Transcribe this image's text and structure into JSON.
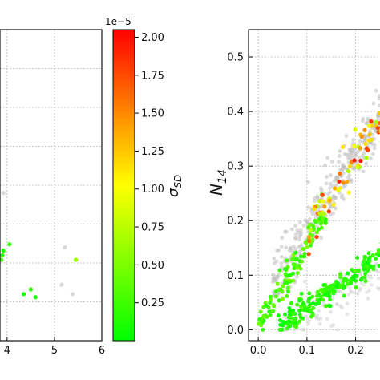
{
  "chart_data": [
    {
      "type": "scatter",
      "panel": "left",
      "xlim": [
        3.85,
        6.0
      ],
      "ylim": [
        0,
        2.0
      ],
      "x_ticks": [
        "4",
        "5",
        "6"
      ],
      "grid": true,
      "series": [
        {
          "color_scale": "sigma_SD",
          "points": [
            {
              "x": 3.9,
              "y": 0.55,
              "c": 2e-06
            },
            {
              "x": 3.92,
              "y": 0.58,
              "c": 1e-06
            },
            {
              "x": 3.88,
              "y": 0.52,
              "c": 3e-06
            },
            {
              "x": 4.05,
              "y": 0.62,
              "c": 2e-06
            },
            {
              "x": 4.35,
              "y": 0.3,
              "c": 1e-06
            },
            {
              "x": 4.5,
              "y": 0.33,
              "c": 2e-06
            },
            {
              "x": 4.6,
              "y": 0.28,
              "c": 1e-06
            },
            {
              "x": 5.45,
              "y": 0.52,
              "c": 6e-06
            }
          ]
        },
        {
          "color": "#d9d9d9",
          "points": [
            {
              "x": 3.92,
              "y": 0.95
            },
            {
              "x": 5.22,
              "y": 0.6
            },
            {
              "x": 5.15,
              "y": 0.36
            },
            {
              "x": 5.38,
              "y": 0.3
            }
          ]
        }
      ]
    },
    {
      "type": "colorbar",
      "label": "σ_SD",
      "label_main": "σ",
      "label_sub": "SD",
      "multiplier": "1e−5",
      "range": [
        0,
        2.05e-05
      ],
      "ticks": [
        "0.25",
        "0.50",
        "0.75",
        "1.00",
        "1.25",
        "1.50",
        "1.75",
        "2.00"
      ],
      "colors": [
        "#00ff00",
        "#ffff00",
        "#ff0000"
      ]
    },
    {
      "type": "scatter",
      "panel": "right",
      "ylabel": "N",
      "ylabel_sub": "14",
      "xlim": [
        -0.02,
        0.26
      ],
      "ylim": [
        -0.02,
        0.55
      ],
      "x_ticks": [
        "0.0",
        "0.1",
        "0.2"
      ],
      "y_ticks": [
        "0.0",
        "0.1",
        "0.2",
        "0.3",
        "0.4",
        "0.5"
      ],
      "grid": true,
      "series": [
        {
          "name_hint": "background",
          "color": "#c8c8c8"
        },
        {
          "name_hint": "colored",
          "color_scale": "sigma_SD"
        }
      ]
    }
  ]
}
